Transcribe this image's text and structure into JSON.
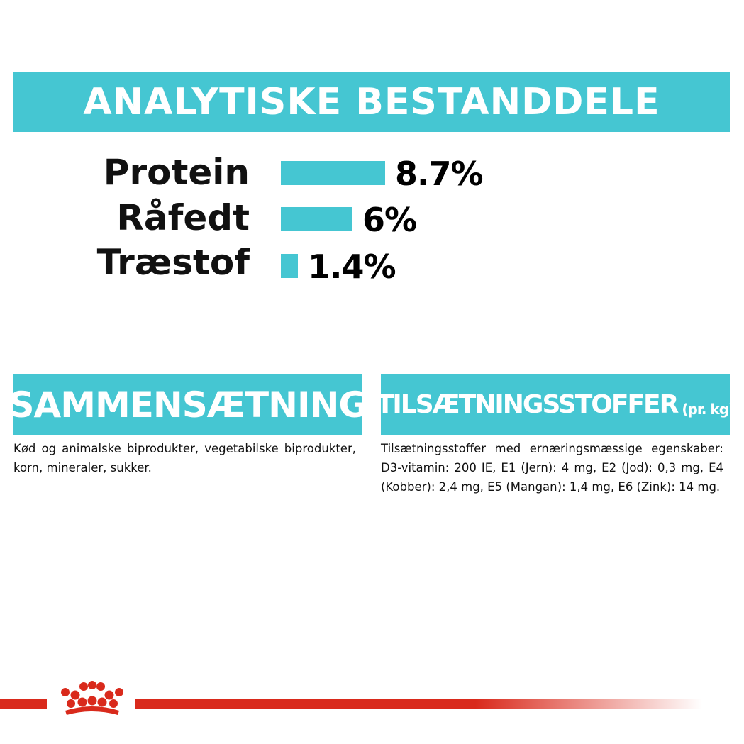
{
  "header": {
    "title": "ANALYTISKE BESTANDDELE"
  },
  "nutrients": [
    {
      "label": "Protein",
      "value_text": "8.7%",
      "value": 8.7
    },
    {
      "label": "Råfedt",
      "value_text": "6%",
      "value": 6
    },
    {
      "label": "Træstof",
      "value_text": "1.4%",
      "value": 1.4
    }
  ],
  "composition": {
    "title": "SAMMENSÆTNING",
    "text": "Kød og animalske biprodukter, vegetabilske biprodukter, korn, mineraler, sukker."
  },
  "additives": {
    "title": "TILSÆTNINGSSTOFFER",
    "unit": "(pr. kg)",
    "text": "Tilsætningsstoffer med ernæringsmæssige egenskaber: D3-vitamin: 200 IE, E1 (Jern): 4 mg, E2 (Jod): 0,3 mg, E4 (Kobber): 2,4 mg, E5 (Mangan): 1,4 mg, E6 (Zink): 14 mg."
  },
  "colors": {
    "accent": "#45c6d2",
    "brand_red": "#d92a1c"
  },
  "icons": {
    "logo": "royal-canin-crown-icon"
  }
}
